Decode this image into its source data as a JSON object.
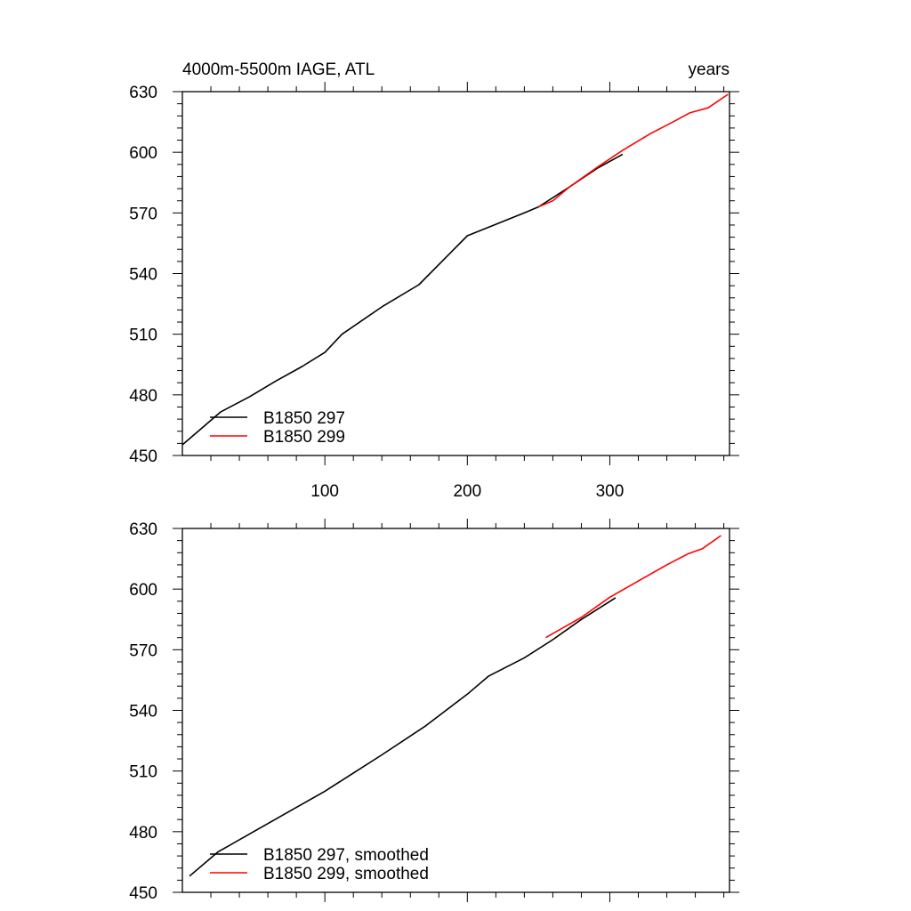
{
  "chart_data": [
    {
      "type": "line",
      "title": "4000m-5500m IAGE, ATL",
      "right_title": "years",
      "xlabel": "",
      "ylabel": "",
      "xlim": [
        0,
        384
      ],
      "ylim": [
        450,
        630
      ],
      "xticks": [
        100,
        200,
        300
      ],
      "yticks": [
        450,
        480,
        510,
        540,
        570,
        600,
        630
      ],
      "legend_placement": "bottom-left",
      "series": [
        {
          "name": "B1850 297",
          "color": "#000000",
          "x": [
            0,
            27,
            47,
            66,
            84,
            100,
            112,
            141,
            166,
            200,
            240,
            250,
            272,
            291,
            309
          ],
          "y": [
            455.3,
            471.6,
            479,
            487,
            494,
            501,
            510,
            524,
            534.5,
            558.7,
            570,
            573,
            583,
            592,
            599
          ]
        },
        {
          "name": "B1850 299",
          "color": "#ff0000",
          "x": [
            250,
            260,
            272,
            291,
            309,
            328,
            347,
            356,
            369,
            383
          ],
          "y": [
            573,
            576,
            583,
            592.5,
            601,
            609,
            616,
            619.5,
            622,
            628.7
          ]
        }
      ]
    },
    {
      "type": "line",
      "xlim": [
        0,
        384
      ],
      "ylim": [
        450,
        630
      ],
      "yticks": [
        450,
        480,
        510,
        540,
        570,
        600,
        630
      ],
      "legend_placement": "bottom-left",
      "series": [
        {
          "name": "B1850 297, smoothed",
          "color": "#000000",
          "x": [
            5,
            25,
            50,
            80,
            100,
            120,
            140,
            170,
            200,
            215,
            240,
            260,
            280,
            304
          ],
          "y": [
            458,
            470,
            480,
            492,
            500,
            509,
            518,
            532,
            548,
            557,
            566,
            575,
            585,
            595.7
          ]
        },
        {
          "name": "B1850 299, smoothed",
          "color": "#ff0000",
          "x": [
            255,
            280,
            300,
            320,
            340,
            355,
            365,
            378
          ],
          "y": [
            576,
            586,
            596,
            604,
            612,
            617.5,
            620,
            626.5
          ]
        }
      ]
    }
  ]
}
